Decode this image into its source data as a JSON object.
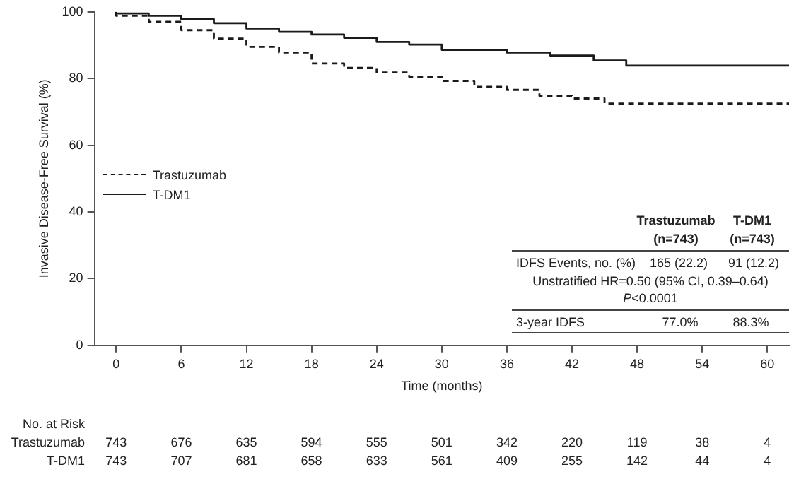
{
  "chart_data": {
    "type": "step",
    "xlabel": "Time (months)",
    "ylabel": "Invasive Disease-Free Survival (%)",
    "xlim": [
      -2,
      62
    ],
    "xticks": [
      0,
      6,
      12,
      18,
      24,
      30,
      36,
      42,
      48,
      54,
      60
    ],
    "ylim": [
      0,
      100
    ],
    "yticks": [
      0,
      20,
      40,
      60,
      80,
      100
    ],
    "grid": false,
    "legend": "left",
    "marker": "none",
    "series": [
      {
        "name": "Trastuzumab",
        "color": "#1a1a1a",
        "line_style": "dashed",
        "x": [
          0,
          3,
          6,
          9,
          12,
          15,
          18,
          21,
          24,
          27,
          30,
          33,
          36,
          39,
          42,
          45,
          49,
          62
        ],
        "values": [
          100,
          98.8,
          97,
          94.5,
          92,
          89.5,
          87.8,
          84.5,
          83.2,
          81.8,
          80.5,
          79.3,
          77.5,
          76.6,
          74.8,
          74,
          72.5,
          72.5
        ]
      },
      {
        "name": "T-DM1",
        "color": "#1a1a1a",
        "line_style": "solid",
        "x": [
          0,
          3,
          6,
          9,
          12,
          15,
          18,
          21,
          24,
          27,
          30,
          36,
          40,
          44,
          47,
          51,
          62
        ],
        "values": [
          100,
          99.5,
          98.8,
          97.8,
          96.6,
          95,
          94,
          93.2,
          92.2,
          91,
          90.2,
          88.6,
          87.8,
          86.9,
          85.4,
          83.9,
          83.9
        ]
      }
    ],
    "annotations": [
      "No. at Risk",
      "Trastuzumab",
      "743",
      "676",
      "635",
      "594",
      "555",
      "501",
      "342",
      "220",
      "119",
      "38",
      "4",
      "T-DM1",
      "743",
      "707",
      "681",
      "658",
      "633",
      "561",
      "409",
      "255",
      "142",
      "44",
      "4",
      "Trastuzumab",
      "T-DM1",
      "(n=743)",
      "(n=743)",
      "IDFS Events, no. (%)",
      "165 (22.2)",
      "91 (12.2)",
      "Unstratified HR=0.50 (95% CI, 0.39–0.64)",
      "P<0.0001",
      "3-year IDFS",
      "77.0%",
      "88.3%"
    ]
  }
}
